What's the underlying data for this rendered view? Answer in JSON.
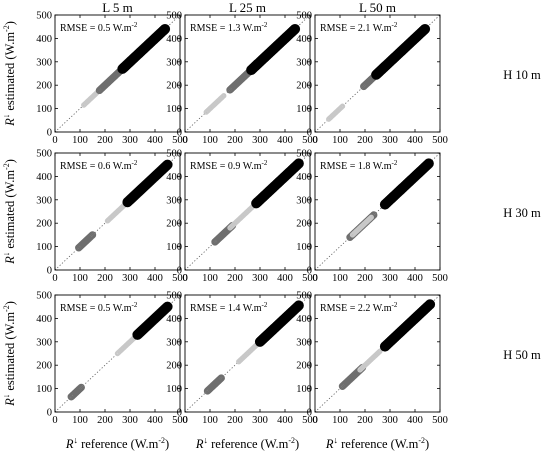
{
  "chart_data": {
    "type": "scatter",
    "layout": "3x3 grid",
    "column_titles": [
      "L 5 m",
      "L 25 m",
      "L 50 m"
    ],
    "row_titles": [
      "H 10 m",
      "H 30 m",
      "H 50 m"
    ],
    "xlabel_main": "R",
    "xlabel_sup": "↓",
    "xlabel_rest": " reference (W.m",
    "xlabel_unit_exp": "-2",
    "xlabel_close": ")",
    "ylabel_main": "R",
    "ylabel_sup": "↓",
    "ylabel_rest": " estimated  (W.m",
    "ylabel_unit_exp": "-2",
    "ylabel_close": ")",
    "xlim": [
      0,
      500
    ],
    "ylim": [
      0,
      500
    ],
    "xticks": [
      "0",
      "100",
      "200",
      "300",
      "400",
      "500"
    ],
    "yticks": [
      "0",
      "100",
      "200",
      "300",
      "400",
      "500"
    ],
    "reference_line": "1:1 dotted",
    "series_colors": [
      "#c8c8c8",
      "#6e6e6e",
      "#000000"
    ],
    "panels": [
      {
        "row": 0,
        "col": 0,
        "rmse": "RMSE = 0.5 W.m",
        "rmse_exp": "-2",
        "segments": [
          {
            "shade": 0,
            "x0": 115,
            "x1": 185,
            "offset": 0,
            "width": 2
          },
          {
            "shade": 1,
            "x0": 178,
            "x1": 268,
            "offset": 0,
            "width": 3
          },
          {
            "shade": 2,
            "x0": 270,
            "x1": 440,
            "offset": 0,
            "width": 4
          }
        ]
      },
      {
        "row": 0,
        "col": 1,
        "rmse": "RMSE = 1.3 W.m",
        "rmse_exp": "-2",
        "segments": [
          {
            "shade": 0,
            "x0": 85,
            "x1": 155,
            "offset": 0,
            "width": 2
          },
          {
            "shade": 1,
            "x0": 180,
            "x1": 290,
            "offset": 0,
            "width": 3
          },
          {
            "shade": 2,
            "x0": 265,
            "x1": 440,
            "offset": 0,
            "width": 4
          }
        ]
      },
      {
        "row": 0,
        "col": 2,
        "rmse": "RMSE = 2.1 W.m",
        "rmse_exp": "-2",
        "segments": [
          {
            "shade": 0,
            "x0": 55,
            "x1": 110,
            "offset": 0,
            "width": 2
          },
          {
            "shade": 1,
            "x0": 195,
            "x1": 300,
            "offset": 0,
            "width": 3
          },
          {
            "shade": 2,
            "x0": 245,
            "x1": 440,
            "offset": 0,
            "width": 4
          }
        ]
      },
      {
        "row": 1,
        "col": 0,
        "rmse": "RMSE = 0.6 W.m",
        "rmse_exp": "-2",
        "segments": [
          {
            "shade": 1,
            "x0": 95,
            "x1": 150,
            "offset": 0,
            "width": 3
          },
          {
            "shade": 0,
            "x0": 210,
            "x1": 285,
            "offset": 0,
            "width": 2
          },
          {
            "shade": 2,
            "x0": 290,
            "x1": 450,
            "offset": 0,
            "width": 4
          }
        ]
      },
      {
        "row": 1,
        "col": 1,
        "rmse": "RMSE = 0.9 W.m",
        "rmse_exp": "-2",
        "segments": [
          {
            "shade": 1,
            "x0": 120,
            "x1": 190,
            "offset": 0,
            "width": 3
          },
          {
            "shade": 0,
            "x0": 180,
            "x1": 270,
            "offset": 0,
            "width": 2
          },
          {
            "shade": 2,
            "x0": 285,
            "x1": 455,
            "offset": 0,
            "width": 4
          }
        ]
      },
      {
        "row": 1,
        "col": 2,
        "rmse": "RMSE = 1.8 W.m",
        "rmse_exp": "-2",
        "segments": [
          {
            "shade": 1,
            "x0": 140,
            "x1": 235,
            "offset": 0,
            "width": 3
          },
          {
            "shade": 0,
            "x0": 150,
            "x1": 225,
            "offset": 0,
            "width": 2
          },
          {
            "shade": 2,
            "x0": 280,
            "x1": 455,
            "offset": 0,
            "width": 4
          }
        ]
      },
      {
        "row": 2,
        "col": 0,
        "rmse": "RMSE = 0.5 W.m",
        "rmse_exp": "-2",
        "segments": [
          {
            "shade": 1,
            "x0": 65,
            "x1": 105,
            "offset": 0,
            "width": 3
          },
          {
            "shade": 0,
            "x0": 250,
            "x1": 325,
            "offset": 0,
            "width": 2
          },
          {
            "shade": 2,
            "x0": 330,
            "x1": 450,
            "offset": 0,
            "width": 4
          }
        ]
      },
      {
        "row": 2,
        "col": 1,
        "rmse": "RMSE = 1.4 W.m",
        "rmse_exp": "-2",
        "segments": [
          {
            "shade": 1,
            "x0": 90,
            "x1": 145,
            "offset": 0,
            "width": 3
          },
          {
            "shade": 0,
            "x0": 215,
            "x1": 295,
            "offset": 0,
            "width": 2
          },
          {
            "shade": 2,
            "x0": 300,
            "x1": 455,
            "offset": 0,
            "width": 4
          }
        ]
      },
      {
        "row": 2,
        "col": 2,
        "rmse": "RMSE = 2.2 W.m",
        "rmse_exp": "-2",
        "segments": [
          {
            "shade": 1,
            "x0": 110,
            "x1": 190,
            "offset": 0,
            "width": 3
          },
          {
            "shade": 0,
            "x0": 180,
            "x1": 260,
            "offset": 0,
            "width": 2
          },
          {
            "shade": 2,
            "x0": 280,
            "x1": 460,
            "offset": 0,
            "width": 4
          }
        ]
      }
    ]
  }
}
